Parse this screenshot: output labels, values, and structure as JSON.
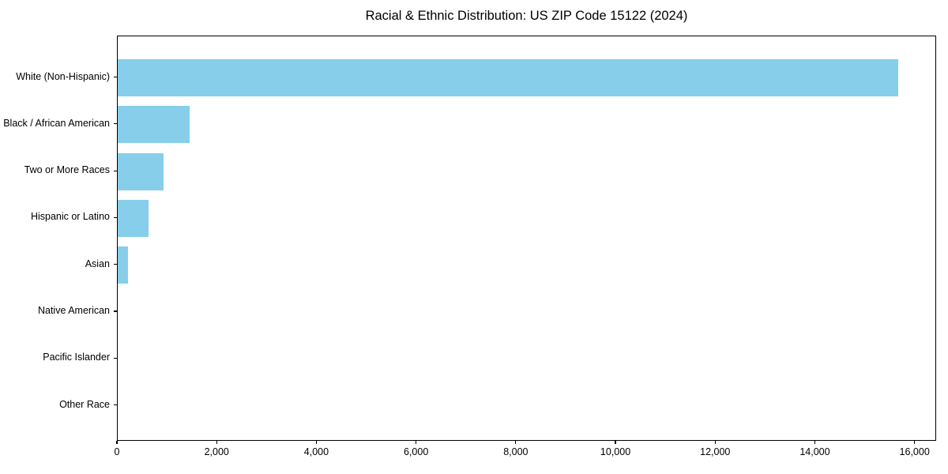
{
  "chart_data": {
    "type": "bar",
    "orientation": "horizontal",
    "title": "Racial & Ethnic Distribution: US ZIP Code 15122 (2024)",
    "categories": [
      "White (Non-Hispanic)",
      "Black / African American",
      "Two or More Races",
      "Hispanic or Latino",
      "Asian",
      "Native American",
      "Pacific Islander",
      "Other Race"
    ],
    "values": [
      15650,
      1440,
      920,
      620,
      200,
      0,
      0,
      0
    ],
    "xlabel": "",
    "ylabel": "",
    "xlim": [
      0,
      16433
    ],
    "xticks": [
      0,
      2000,
      4000,
      6000,
      8000,
      10000,
      12000,
      14000,
      16000
    ],
    "xtick_labels": [
      "0",
      "2,000",
      "4,000",
      "6,000",
      "8,000",
      "10,000",
      "12,000",
      "14,000",
      "16,000"
    ],
    "grid": false,
    "legend": null,
    "bar_color": "#87CEEB",
    "background_color": "#ffffff",
    "text_color": "#000000",
    "spine_color": "#000000"
  }
}
